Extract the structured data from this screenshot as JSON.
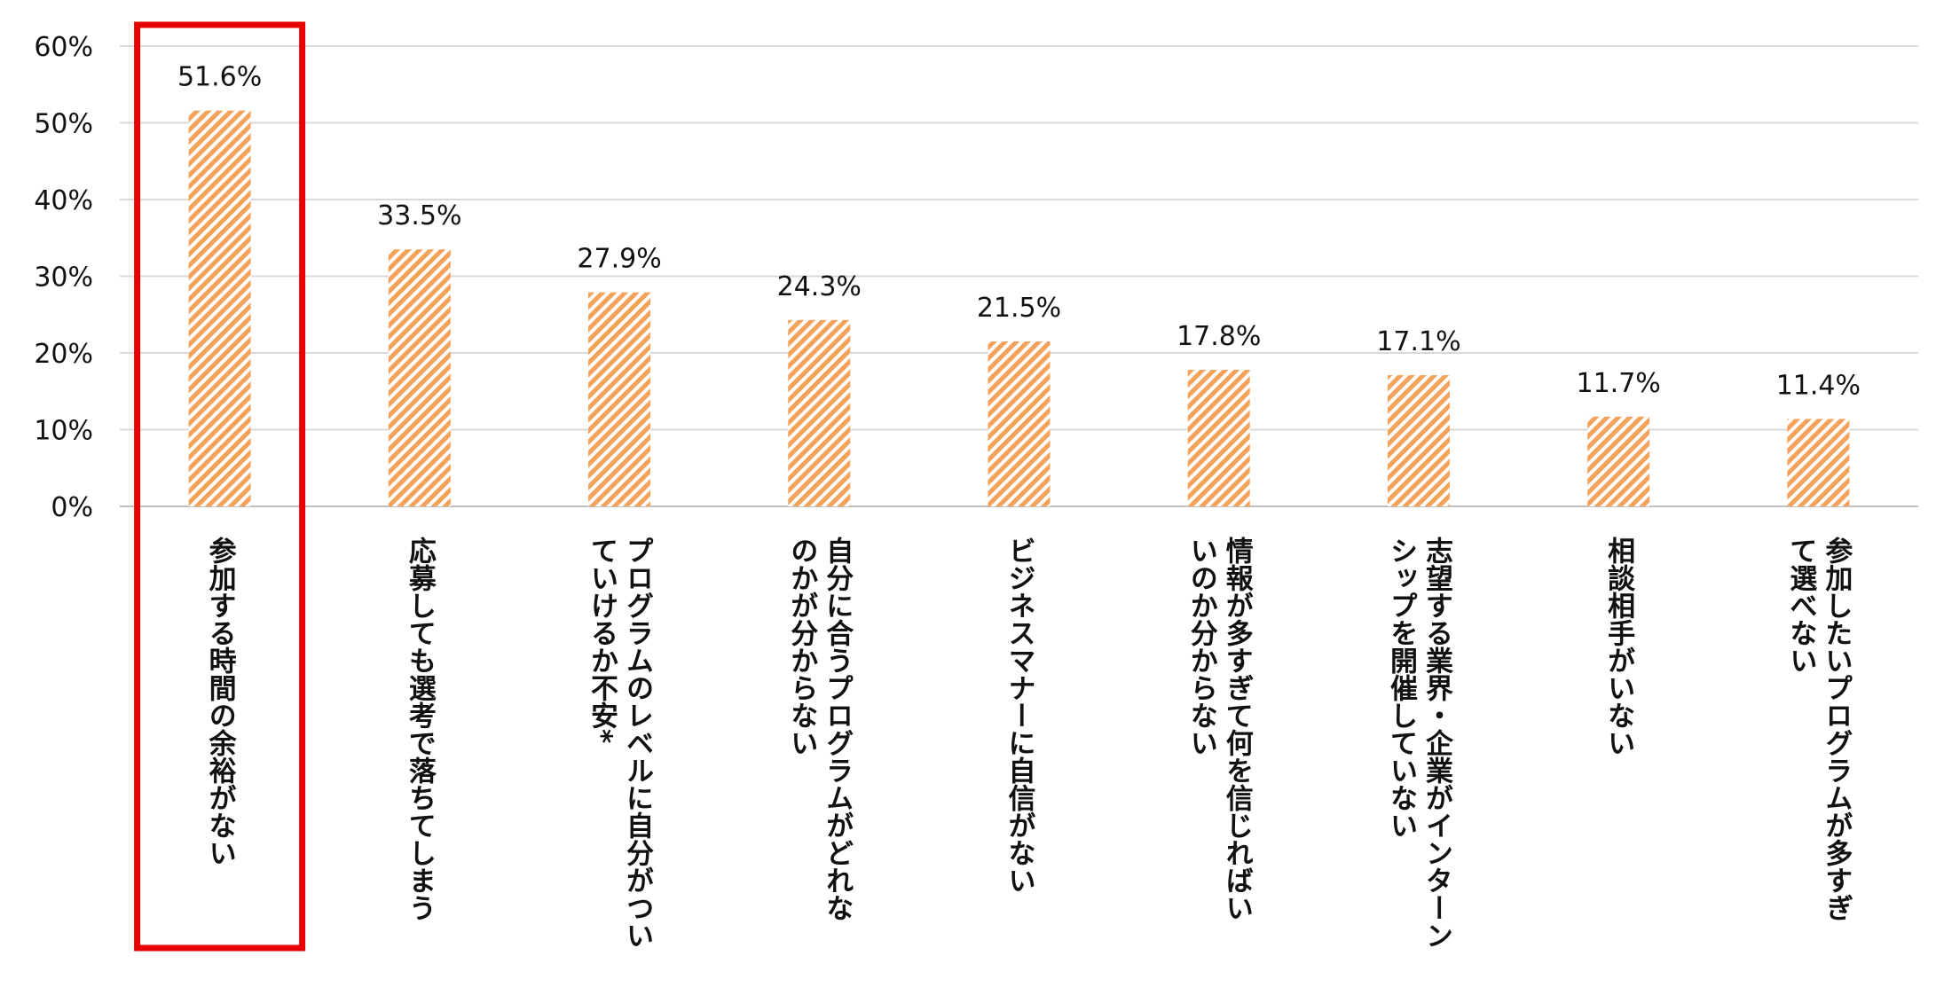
{
  "chart_data": {
    "type": "bar",
    "title": "",
    "xlabel": "",
    "ylabel": "",
    "ylim": [
      0,
      60
    ],
    "yticks": [
      "0%",
      "10%",
      "20%",
      "30%",
      "40%",
      "50%",
      "60%"
    ],
    "ytick_values": [
      0,
      10,
      20,
      30,
      40,
      50,
      60
    ],
    "grid": true,
    "bar_color": "#f4a460",
    "bar_pattern": "diagonal-hatch",
    "highlight_color": "#e60000",
    "highlight_index": 0,
    "categories": [
      "参加する時間の余裕がない",
      "応募しても選考で落ちてしまう",
      "プログラムのレベルに自分がついていけるか不安*",
      "自分に合うプログラムがどれなのかが分からない",
      "ビジネスマナーに自信がない",
      "情報が多すぎて何を信じればいいのか分からない",
      "志望する業界・企業がインターンシップを開催していない",
      "相談相手がいない",
      "参加したいプログラムが多すぎて選べない"
    ],
    "category_lines": [
      [
        "参加する時間の余裕がない"
      ],
      [
        "応募しても選考で落ちてしまう"
      ],
      [
        "プログラムのレベルに自分がつい",
        "ていけるか不安*"
      ],
      [
        "自分に合うプログラムがどれな",
        "のかが分からない"
      ],
      [
        "ビジネスマナーに自信がない"
      ],
      [
        "情報が多すぎて何を信じればい",
        "いのか分からない"
      ],
      [
        "志望する業界・企業がインターン",
        "シップを開催していない"
      ],
      [
        "相談相手がいない"
      ],
      [
        "参加したいプログラムが多すぎ",
        "て選べない"
      ]
    ],
    "values": [
      51.6,
      33.5,
      27.9,
      24.3,
      21.5,
      17.8,
      17.1,
      11.7,
      11.4
    ],
    "value_labels": [
      "51.6%",
      "33.5%",
      "27.9%",
      "24.3%",
      "21.5%",
      "17.8%",
      "17.1%",
      "11.7%",
      "11.4%"
    ]
  }
}
